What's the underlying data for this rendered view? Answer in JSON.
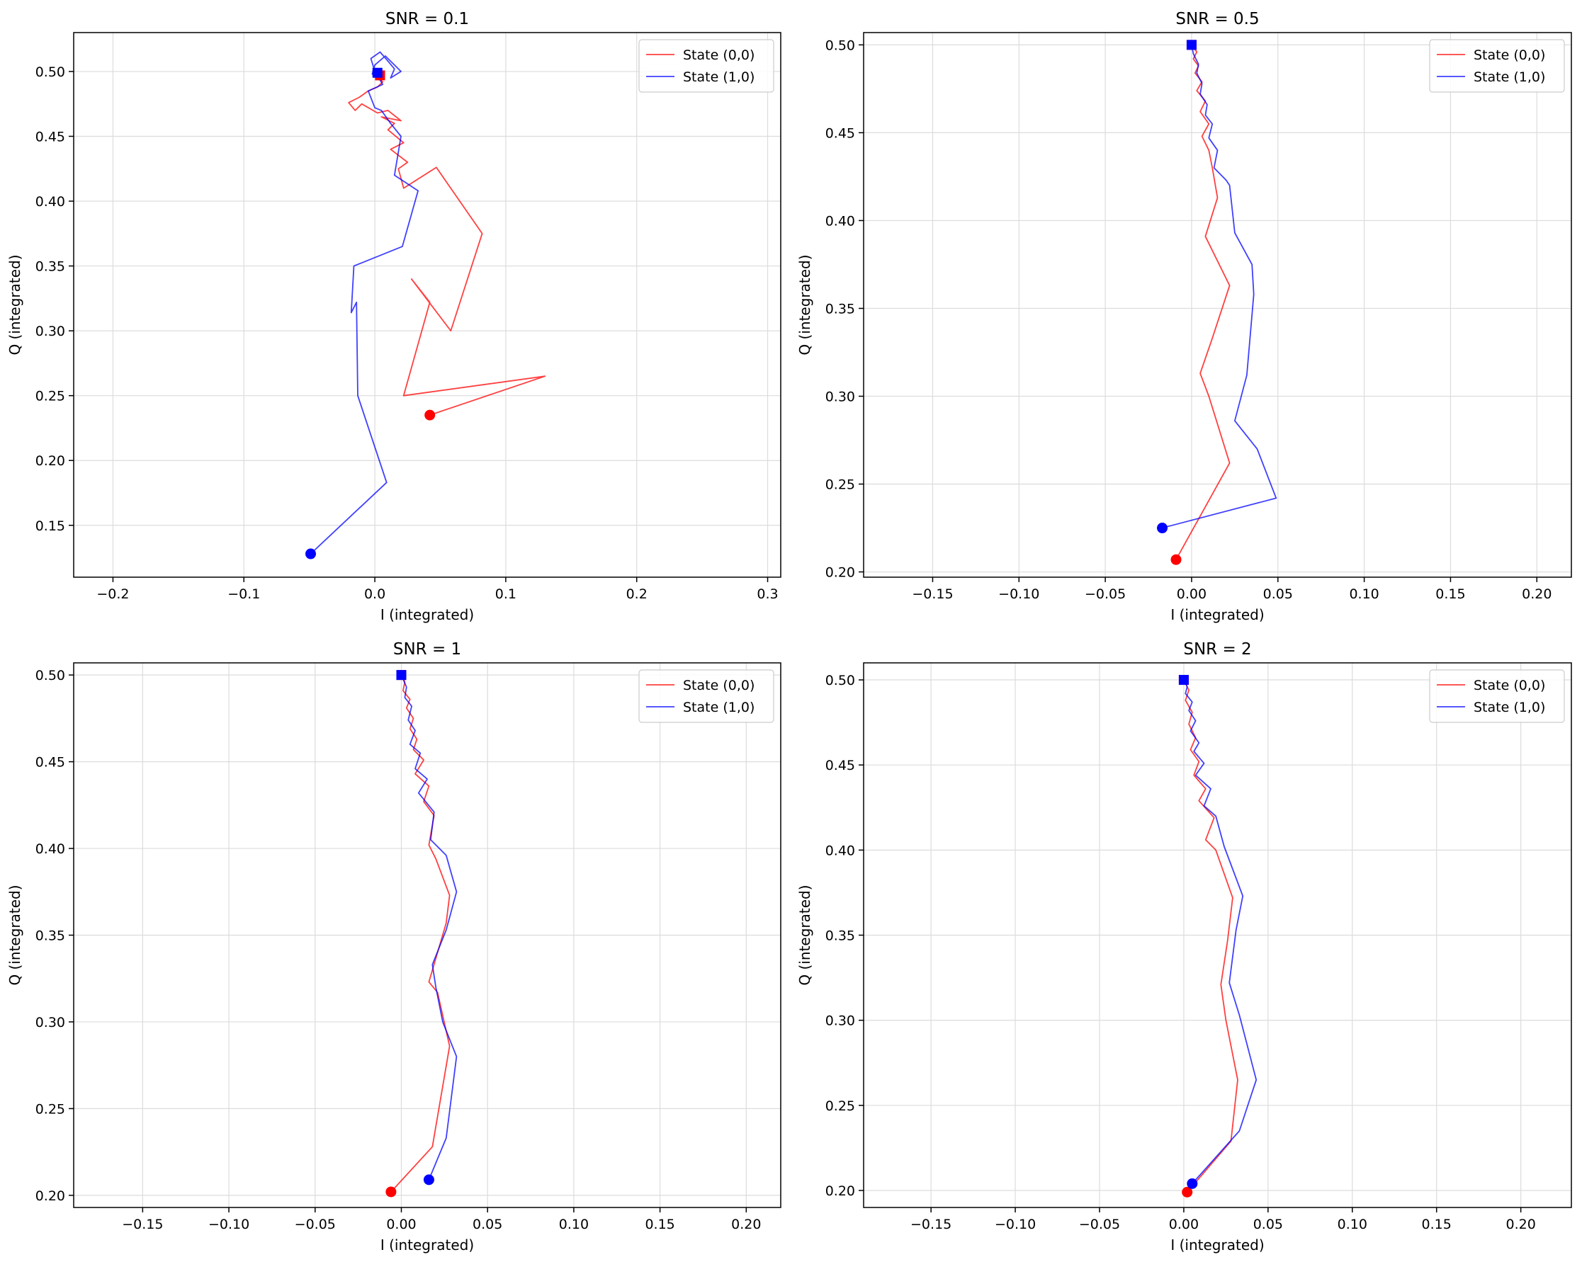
{
  "chart_data": [
    {
      "type": "line",
      "title": "SNR = 0.1",
      "xlabel": "I (integrated)",
      "ylabel": "Q (integrated)",
      "xlim": [
        -0.23,
        0.31
      ],
      "ylim": [
        0.11,
        0.53
      ],
      "xticks": [
        -0.2,
        -0.1,
        0.0,
        0.1,
        0.2,
        0.3
      ],
      "xtick_labels": [
        "−0.2",
        "−0.1",
        "0.0",
        "0.1",
        "0.2",
        "0.3"
      ],
      "yticks": [
        0.15,
        0.2,
        0.25,
        0.3,
        0.35,
        0.4,
        0.45,
        0.5
      ],
      "ytick_labels": [
        "0.15",
        "0.20",
        "0.25",
        "0.30",
        "0.35",
        "0.40",
        "0.45",
        "0.50"
      ],
      "grid": true,
      "legend": "top-right",
      "series": [
        {
          "name": "State (0,0)",
          "color": "#ff0000",
          "x": [
            0.042,
            0.13,
            0.022,
            0.042,
            0.028,
            0.058,
            0.082,
            0.047,
            0.022,
            0.018,
            0.025,
            0.012,
            0.022,
            0.01,
            0.015,
            0.005,
            0.02,
            0.01,
            0.002,
            -0.01,
            -0.015,
            -0.02,
            -0.012,
            -0.005,
            0.002,
            0.006,
            0.002,
            0.005,
            0.001,
            0.004
          ],
          "y": [
            0.235,
            0.265,
            0.25,
            0.322,
            0.34,
            0.3,
            0.375,
            0.426,
            0.41,
            0.425,
            0.43,
            0.44,
            0.445,
            0.455,
            0.46,
            0.465,
            0.462,
            0.47,
            0.468,
            0.475,
            0.47,
            0.476,
            0.48,
            0.485,
            0.488,
            0.492,
            0.495,
            0.498,
            0.5,
            0.497
          ],
          "start_marker": "circle",
          "end_marker": "square"
        },
        {
          "name": "State (1,0)",
          "color": "#0000ff",
          "x": [
            -0.049,
            0.009,
            -0.013,
            -0.014,
            -0.018,
            -0.016,
            0.021,
            0.033,
            0.015,
            0.02,
            0.012,
            0.005,
            0.0,
            -0.005,
            0.006,
            0.0,
            -0.003,
            0.004,
            0.01,
            0.015,
            0.012,
            0.02,
            0.008,
            0.0,
            -0.002,
            0.005,
            0.0,
            0.002
          ],
          "y": [
            0.128,
            0.183,
            0.25,
            0.322,
            0.314,
            0.35,
            0.365,
            0.408,
            0.42,
            0.45,
            0.46,
            0.47,
            0.472,
            0.485,
            0.49,
            0.5,
            0.51,
            0.515,
            0.508,
            0.502,
            0.495,
            0.5,
            0.512,
            0.505,
            0.498,
            0.493,
            0.5,
            0.499
          ],
          "start_marker": "circle",
          "end_marker": "square"
        }
      ]
    },
    {
      "type": "line",
      "title": "SNR = 0.5",
      "xlabel": "I (integrated)",
      "ylabel": "Q (integrated)",
      "xlim": [
        -0.19,
        0.22
      ],
      "ylim": [
        0.197,
        0.507
      ],
      "xticks": [
        -0.15,
        -0.1,
        -0.05,
        0.0,
        0.05,
        0.1,
        0.15,
        0.2
      ],
      "xtick_labels": [
        "−0.15",
        "−0.10",
        "−0.05",
        "0.00",
        "0.05",
        "0.10",
        "0.15",
        "0.20"
      ],
      "yticks": [
        0.2,
        0.25,
        0.3,
        0.35,
        0.4,
        0.45,
        0.5
      ],
      "ytick_labels": [
        "0.20",
        "0.25",
        "0.30",
        "0.35",
        "0.40",
        "0.45",
        "0.50"
      ],
      "grid": true,
      "legend": "top-right",
      "series": [
        {
          "name": "State (0,0)",
          "color": "#ff0000",
          "x": [
            -0.009,
            0.022,
            0.01,
            0.005,
            0.012,
            0.022,
            0.008,
            0.015,
            0.012,
            0.01,
            0.006,
            0.01,
            0.005,
            0.008,
            0.003,
            0.006,
            0.002,
            0.004,
            0.001,
            0.003,
            0.0
          ],
          "y": [
            0.207,
            0.262,
            0.3,
            0.313,
            0.333,
            0.363,
            0.391,
            0.413,
            0.43,
            0.44,
            0.448,
            0.455,
            0.462,
            0.468,
            0.474,
            0.479,
            0.484,
            0.488,
            0.492,
            0.496,
            0.5
          ],
          "start_marker": "circle",
          "end_marker": "square"
        },
        {
          "name": "State (1,0)",
          "color": "#0000ff",
          "x": [
            -0.017,
            0.049,
            0.038,
            0.025,
            0.032,
            0.036,
            0.035,
            0.025,
            0.022,
            0.02,
            0.013,
            0.015,
            0.01,
            0.012,
            0.008,
            0.009,
            0.005,
            0.006,
            0.003,
            0.004,
            0.001,
            0.0
          ],
          "y": [
            0.225,
            0.242,
            0.27,
            0.286,
            0.312,
            0.358,
            0.375,
            0.393,
            0.42,
            0.423,
            0.43,
            0.44,
            0.447,
            0.455,
            0.46,
            0.466,
            0.472,
            0.478,
            0.484,
            0.489,
            0.495,
            0.5
          ],
          "start_marker": "circle",
          "end_marker": "square"
        }
      ]
    },
    {
      "type": "line",
      "title": "SNR = 1",
      "xlabel": "I (integrated)",
      "ylabel": "Q (integrated)",
      "xlim": [
        -0.19,
        0.22
      ],
      "ylim": [
        0.193,
        0.507
      ],
      "xticks": [
        -0.15,
        -0.1,
        -0.05,
        0.0,
        0.05,
        0.1,
        0.15,
        0.2
      ],
      "xtick_labels": [
        "−0.15",
        "−0.10",
        "−0.05",
        "0.00",
        "0.05",
        "0.10",
        "0.15",
        "0.20"
      ],
      "yticks": [
        0.2,
        0.25,
        0.3,
        0.35,
        0.4,
        0.45,
        0.5
      ],
      "ytick_labels": [
        "0.20",
        "0.25",
        "0.30",
        "0.35",
        "0.40",
        "0.45",
        "0.50"
      ],
      "grid": true,
      "legend": "top-right",
      "series": [
        {
          "name": "State (0,0)",
          "color": "#ff0000",
          "x": [
            -0.006,
            0.018,
            0.028,
            0.021,
            0.016,
            0.026,
            0.028,
            0.02,
            0.016,
            0.019,
            0.013,
            0.016,
            0.008,
            0.013,
            0.007,
            0.009,
            0.005,
            0.007,
            0.003,
            0.005,
            0.001,
            0.002,
            0.0
          ],
          "y": [
            0.202,
            0.228,
            0.286,
            0.317,
            0.323,
            0.357,
            0.373,
            0.394,
            0.402,
            0.419,
            0.427,
            0.436,
            0.443,
            0.451,
            0.457,
            0.463,
            0.469,
            0.475,
            0.481,
            0.486,
            0.491,
            0.496,
            0.5
          ],
          "start_marker": "circle",
          "end_marker": "square"
        },
        {
          "name": "State (1,0)",
          "color": "#0000ff",
          "x": [
            0.016,
            0.026,
            0.032,
            0.024,
            0.02,
            0.018,
            0.026,
            0.032,
            0.026,
            0.017,
            0.019,
            0.01,
            0.015,
            0.008,
            0.011,
            0.005,
            0.008,
            0.004,
            0.006,
            0.002,
            0.003,
            0.0
          ],
          "y": [
            0.209,
            0.233,
            0.28,
            0.3,
            0.32,
            0.333,
            0.353,
            0.375,
            0.396,
            0.405,
            0.421,
            0.432,
            0.44,
            0.446,
            0.455,
            0.46,
            0.468,
            0.474,
            0.482,
            0.487,
            0.493,
            0.5
          ],
          "start_marker": "circle",
          "end_marker": "square"
        }
      ]
    },
    {
      "type": "line",
      "title": "SNR = 2",
      "xlabel": "I (integrated)",
      "ylabel": "Q (integrated)",
      "xlim": [
        -0.19,
        0.23
      ],
      "ylim": [
        0.19,
        0.51
      ],
      "xticks": [
        -0.15,
        -0.1,
        -0.05,
        0.0,
        0.05,
        0.1,
        0.15,
        0.2
      ],
      "xtick_labels": [
        "−0.15",
        "−0.10",
        "−0.05",
        "0.00",
        "0.05",
        "0.10",
        "0.15",
        "0.20"
      ],
      "yticks": [
        0.2,
        0.25,
        0.3,
        0.35,
        0.4,
        0.45,
        0.5
      ],
      "ytick_labels": [
        "0.20",
        "0.25",
        "0.30",
        "0.35",
        "0.40",
        "0.45",
        "0.50"
      ],
      "grid": true,
      "legend": "top-right",
      "series": [
        {
          "name": "State (0,0)",
          "color": "#ff0000",
          "x": [
            0.002,
            0.028,
            0.032,
            0.025,
            0.022,
            0.026,
            0.029,
            0.019,
            0.013,
            0.018,
            0.009,
            0.013,
            0.006,
            0.009,
            0.004,
            0.007,
            0.003,
            0.005,
            0.001,
            0.003,
            0.0
          ],
          "y": [
            0.199,
            0.229,
            0.265,
            0.3,
            0.321,
            0.347,
            0.372,
            0.4,
            0.406,
            0.419,
            0.429,
            0.436,
            0.444,
            0.452,
            0.459,
            0.466,
            0.474,
            0.481,
            0.488,
            0.494,
            0.5
          ],
          "start_marker": "circle",
          "end_marker": "square"
        },
        {
          "name": "State (1,0)",
          "color": "#0000ff",
          "x": [
            0.005,
            0.033,
            0.043,
            0.033,
            0.027,
            0.031,
            0.035,
            0.024,
            0.019,
            0.012,
            0.016,
            0.007,
            0.012,
            0.006,
            0.009,
            0.004,
            0.007,
            0.003,
            0.005,
            0.001,
            0.002,
            0.0
          ],
          "y": [
            0.204,
            0.235,
            0.265,
            0.303,
            0.322,
            0.353,
            0.373,
            0.402,
            0.42,
            0.426,
            0.436,
            0.444,
            0.451,
            0.458,
            0.463,
            0.47,
            0.476,
            0.482,
            0.487,
            0.492,
            0.496,
            0.5
          ],
          "start_marker": "circle",
          "end_marker": "square"
        }
      ]
    }
  ]
}
